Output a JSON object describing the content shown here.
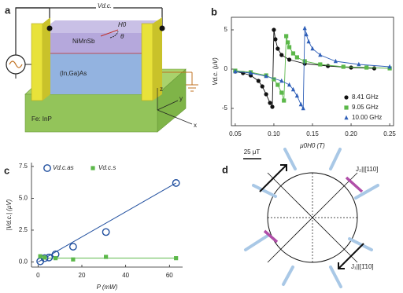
{
  "diagram_a": {
    "panel": "a",
    "labels": {
      "voltage": "Vd.c.",
      "top_layer": "NiMnSb",
      "field": "H0",
      "angle": "θ",
      "middle_layer": "(In,Ga)As",
      "substrate": "Fe: InP",
      "x": "x",
      "y": "y",
      "z": "z"
    }
  },
  "chart_data": [
    {
      "type": "scatter",
      "panel": "b",
      "xlabel": "μ0H0 (T)",
      "ylabel": "Vd.c. (μV)",
      "xlim": [
        0.045,
        0.255
      ],
      "xticks": [
        0.05,
        {
          "value": 0.1,
          "label": "0.10"
        },
        0.15,
        {
          "value": 0.2,
          "label": "0.20"
        },
        0.25
      ],
      "ylim": [
        -7.2,
        6.6
      ],
      "yticks": [
        -5,
        0,
        5
      ],
      "frame": true,
      "connect": true,
      "legend": "lower right",
      "series": [
        {
          "name": "8.41 GHz",
          "color": "#111111",
          "marker": "circle",
          "x": [
            0.05,
            0.06,
            0.07,
            0.08,
            0.085,
            0.09,
            0.095,
            0.098,
            0.1,
            0.102,
            0.105,
            0.11,
            0.12,
            0.14,
            0.17,
            0.2,
            0.23
          ],
          "values": [
            -0.3,
            -0.5,
            -0.8,
            -1.5,
            -2.2,
            -3.2,
            -4.3,
            -4.8,
            5.0,
            3.8,
            2.6,
            1.8,
            1.2,
            0.7,
            0.4,
            0.2,
            0.1
          ]
        },
        {
          "name": "9.05 GHz",
          "color": "#5cb84a",
          "marker": "square",
          "x": [
            0.05,
            0.07,
            0.09,
            0.1,
            0.105,
            0.11,
            0.113,
            0.116,
            0.118,
            0.12,
            0.125,
            0.13,
            0.14,
            0.16,
            0.19,
            0.22,
            0.25
          ],
          "values": [
            -0.2,
            -0.4,
            -0.8,
            -1.3,
            -2.0,
            -3.0,
            -4.0,
            4.2,
            3.4,
            2.8,
            2.0,
            1.5,
            1.0,
            0.6,
            0.3,
            0.2,
            0.1
          ]
        },
        {
          "name": "10.00 GHz",
          "color": "#2f5fb8",
          "marker": "triangle",
          "x": [
            0.05,
            0.07,
            0.09,
            0.11,
            0.12,
            0.125,
            0.13,
            0.135,
            0.138,
            0.14,
            0.142,
            0.145,
            0.15,
            0.16,
            0.18,
            0.21,
            0.25
          ],
          "values": [
            -0.3,
            -0.5,
            -0.9,
            -1.5,
            -2.0,
            -2.6,
            -3.4,
            -4.5,
            -5.0,
            5.2,
            4.4,
            3.5,
            2.6,
            1.8,
            1.0,
            0.6,
            0.3
          ]
        }
      ]
    },
    {
      "type": "scatter",
      "panel": "c",
      "xlabel": "P (mW)",
      "ylabel": "|Vd.c.| (μV)",
      "xlim": [
        -3,
        66
      ],
      "xticks": [
        0,
        20,
        40,
        60
      ],
      "ylim": [
        -0.4,
        7.8
      ],
      "yticks": [
        {
          "value": 0,
          "label": "0.0"
        },
        2.5,
        {
          "value": 5,
          "label": "5.0"
        },
        7.5
      ],
      "frame": false,
      "connect": false,
      "legend": "upper left",
      "series": [
        {
          "name": "Vd.c.as",
          "color": "#1f4e9e",
          "marker": "open-circle",
          "x": [
            1,
            3,
            5,
            8,
            16,
            31,
            63
          ],
          "values": [
            0.05,
            0.3,
            0.35,
            0.6,
            1.2,
            2.35,
            6.2
          ]
        },
        {
          "name": "Vd.c.s",
          "color": "#5cb84a",
          "marker": "square",
          "x": [
            1,
            3,
            8,
            16,
            31,
            63
          ],
          "values": [
            0.45,
            0.35,
            0.3,
            0.2,
            0.4,
            0.3
          ]
        }
      ],
      "fits": [
        {
          "color": "#1f4e9e",
          "x": [
            0,
            63
          ],
          "values": [
            0,
            6.2
          ]
        },
        {
          "color": "#5cb84a",
          "x": [
            0,
            63
          ],
          "values": [
            0.3,
            0.3
          ]
        }
      ]
    }
  ],
  "diagram_d": {
    "panel": "d",
    "scale": "25 μT",
    "axis_2": "J₂||[110]",
    "axis_1": "J₁||[1̄10]"
  }
}
